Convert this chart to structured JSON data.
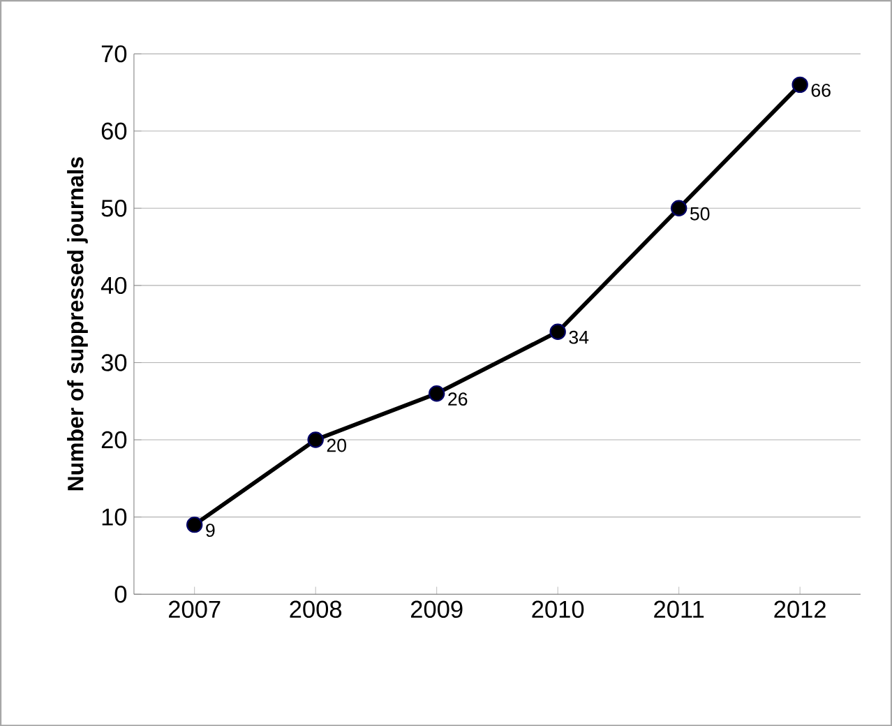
{
  "chart_data": {
    "type": "line",
    "ylabel": "Number of suppressed journals",
    "categories": [
      "2007",
      "2008",
      "2009",
      "2010",
      "2011",
      "2012"
    ],
    "series": [
      {
        "color": "#000000",
        "values": [
          9,
          20,
          26,
          34,
          50,
          66
        ]
      }
    ],
    "ylim": [
      0,
      70
    ],
    "yticks": [
      0,
      10,
      20,
      30,
      40,
      50,
      60,
      70
    ],
    "grid": "y",
    "marker": "circle",
    "line_style": "solid",
    "data_labels": true
  }
}
